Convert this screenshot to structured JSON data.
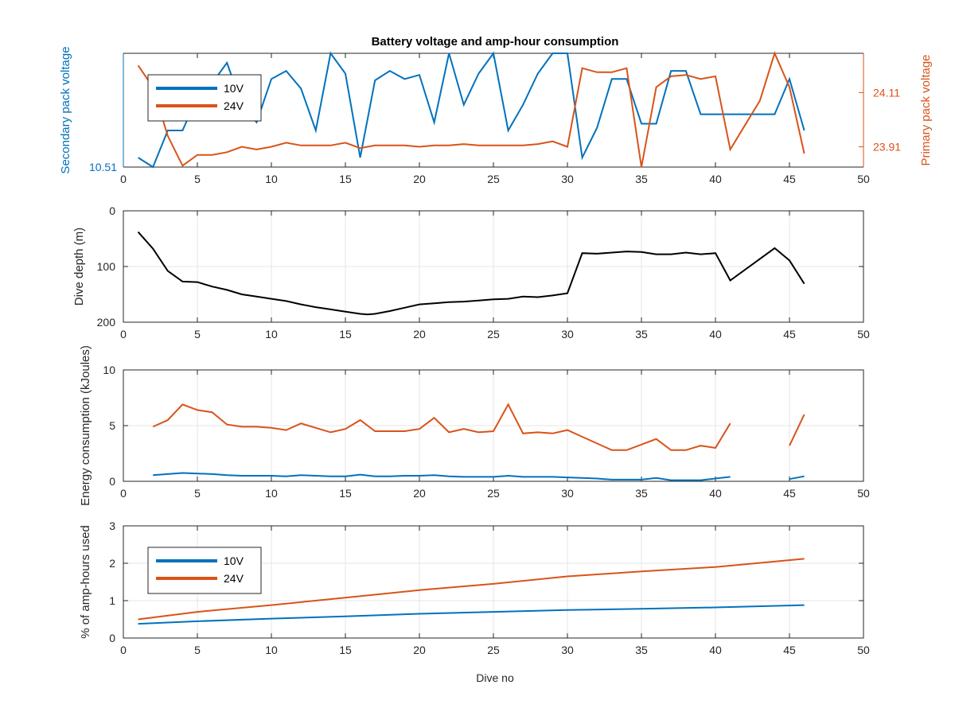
{
  "figure": {
    "title": "Battery voltage and amp-hour consumption",
    "xlabel": "Dive no"
  },
  "colors": {
    "blue": "#0072BD",
    "orange": "#D95319",
    "black": "#000000",
    "grid": "#e6e6e6",
    "axis": "#262626"
  },
  "chart_data": [
    {
      "type": "line",
      "id": "voltage",
      "title": "Battery voltage and amp-hour consumption",
      "xlabel": "",
      "xlim": [
        0,
        50
      ],
      "xticks": [
        0,
        5,
        10,
        15,
        20,
        25,
        30,
        35,
        40,
        45,
        50
      ],
      "ylabel_left": "Secondary pack voltage",
      "ylabel_right": "Primary pack voltage",
      "ylim_left": [
        10.51,
        10.552
      ],
      "yticks_left": [
        10.51
      ],
      "ytick_labels_left": [
        "10.51"
      ],
      "ylim_right": [
        23.835,
        24.255
      ],
      "yticks_right": [
        23.91,
        24.11
      ],
      "ytick_labels_right": [
        "23.91",
        "24.11"
      ],
      "grid": false,
      "legend": {
        "position": "top-left",
        "entries": [
          "10V",
          "24V"
        ]
      },
      "series": [
        {
          "name": "10V",
          "axis": "left",
          "color": "blue",
          "x": [
            1,
            2,
            3,
            4,
            5,
            6,
            7,
            8,
            9,
            10,
            11,
            12,
            13,
            14,
            15,
            16,
            17,
            18,
            19,
            20,
            21,
            22,
            23,
            24,
            25,
            26,
            27,
            28,
            29,
            30,
            31,
            32,
            33,
            34,
            35,
            36,
            37,
            38,
            39,
            40,
            41,
            42,
            43,
            44,
            45,
            46
          ],
          "y": [
            10.5135,
            10.51,
            10.5235,
            10.5235,
            10.536,
            10.541,
            10.5485,
            10.533,
            10.5265,
            10.5425,
            10.5455,
            10.539,
            10.5235,
            10.552,
            10.5445,
            10.5135,
            10.542,
            10.5455,
            10.5425,
            10.544,
            10.5265,
            10.552,
            10.533,
            10.5445,
            10.552,
            10.5235,
            10.533,
            10.5445,
            10.552,
            10.552,
            10.5135,
            10.5245,
            10.5425,
            10.5425,
            10.526,
            10.526,
            10.5455,
            10.5455,
            10.5295,
            10.5295,
            10.5295,
            10.5295,
            10.5295,
            10.5295,
            10.5425,
            10.5235
          ]
        },
        {
          "name": "24V",
          "axis": "right",
          "color": "orange",
          "x": [
            1,
            2,
            3,
            4,
            5,
            6,
            7,
            8,
            9,
            10,
            11,
            12,
            13,
            14,
            15,
            16,
            17,
            18,
            19,
            20,
            21,
            22,
            23,
            24,
            25,
            26,
            27,
            28,
            29,
            30,
            31,
            32,
            33,
            34,
            35,
            36,
            37,
            38,
            39,
            40,
            41,
            42,
            43,
            44,
            45,
            46
          ],
          "y": [
            24.21,
            24.13,
            23.95,
            23.84,
            23.88,
            23.88,
            23.89,
            23.91,
            23.9,
            23.91,
            23.925,
            23.915,
            23.915,
            23.915,
            23.925,
            23.905,
            23.915,
            23.915,
            23.915,
            23.91,
            23.915,
            23.915,
            23.92,
            23.915,
            23.915,
            23.915,
            23.915,
            23.92,
            23.93,
            23.91,
            24.2,
            24.185,
            24.185,
            24.2,
            23.835,
            24.13,
            24.17,
            24.175,
            24.16,
            24.17,
            23.9,
            23.99,
            24.08,
            24.255,
            24.13,
            23.885
          ]
        }
      ]
    },
    {
      "type": "line",
      "id": "depth",
      "xlabel": "",
      "ylabel": "Dive depth (m)",
      "xlim": [
        0,
        50
      ],
      "xticks": [
        0,
        5,
        10,
        15,
        20,
        25,
        30,
        35,
        40,
        45,
        50
      ],
      "ylim": [
        0,
        200
      ],
      "y_reversed": true,
      "yticks": [
        0,
        100,
        200
      ],
      "grid": true,
      "series": [
        {
          "color": "black",
          "x": [
            1,
            2,
            3,
            4,
            5,
            6,
            7,
            8,
            9,
            10,
            11,
            12,
            13,
            14,
            15,
            16,
            16.5,
            17,
            18,
            19,
            20,
            21,
            22,
            23,
            24,
            25,
            26,
            27,
            28,
            29,
            30,
            31,
            32,
            33,
            34,
            35,
            36,
            37,
            38,
            39,
            40,
            41,
            44,
            45,
            46
          ],
          "y": [
            38,
            68,
            108,
            127,
            128,
            136,
            142,
            150,
            154,
            158,
            162,
            168,
            173,
            177,
            181,
            185,
            186,
            185,
            180,
            174,
            168,
            166,
            164,
            163,
            161,
            159,
            158,
            154,
            155,
            152,
            148,
            76,
            77,
            75,
            73,
            74,
            78,
            78,
            75,
            78,
            76,
            125,
            67,
            89,
            131
          ]
        }
      ]
    },
    {
      "type": "line",
      "id": "energy",
      "xlabel": "",
      "ylabel": "Energy consumption (kJoules)",
      "xlim": [
        0,
        50
      ],
      "xticks": [
        0,
        5,
        10,
        15,
        20,
        25,
        30,
        35,
        40,
        45,
        50
      ],
      "ylim": [
        0,
        10
      ],
      "yticks": [
        0,
        5,
        10
      ],
      "grid": true,
      "series": [
        {
          "color": "orange",
          "segments": [
            {
              "x": [
                2,
                3,
                4,
                5,
                6,
                7,
                8,
                9,
                10,
                11,
                12,
                13,
                14,
                15,
                16,
                17,
                18,
                19,
                20,
                21,
                22,
                23,
                24,
                25,
                26,
                27,
                28,
                29,
                30,
                31,
                32,
                33,
                34,
                35,
                36,
                37,
                38,
                39,
                40,
                41
              ],
              "y": [
                4.9,
                5.5,
                6.9,
                6.4,
                6.2,
                5.1,
                4.9,
                4.9,
                4.8,
                4.6,
                5.2,
                4.8,
                4.4,
                4.7,
                5.5,
                4.5,
                4.5,
                4.5,
                4.7,
                5.7,
                4.4,
                4.7,
                4.4,
                4.5,
                6.9,
                4.3,
                4.4,
                4.3,
                4.6,
                4.0,
                3.4,
                2.8,
                2.8,
                3.3,
                3.8,
                2.8,
                2.8,
                3.2,
                3.0,
                5.2
              ]
            },
            {
              "x": [
                45,
                46
              ],
              "y": [
                3.2,
                6.0
              ]
            }
          ]
        },
        {
          "color": "blue",
          "segments": [
            {
              "x": [
                2,
                3,
                4,
                5,
                6,
                7,
                8,
                9,
                10,
                11,
                12,
                13,
                14,
                15,
                16,
                17,
                18,
                19,
                20,
                21,
                22,
                23,
                24,
                25,
                26,
                27,
                28,
                29,
                30,
                31,
                32,
                33,
                34,
                35,
                36,
                37,
                38,
                39,
                40,
                41
              ],
              "y": [
                0.55,
                0.65,
                0.75,
                0.7,
                0.65,
                0.55,
                0.5,
                0.5,
                0.5,
                0.45,
                0.55,
                0.5,
                0.45,
                0.45,
                0.6,
                0.45,
                0.45,
                0.5,
                0.5,
                0.55,
                0.45,
                0.4,
                0.4,
                0.4,
                0.5,
                0.4,
                0.4,
                0.4,
                0.35,
                0.3,
                0.25,
                0.15,
                0.15,
                0.15,
                0.3,
                0.1,
                0.1,
                0.1,
                0.25,
                0.4
              ]
            },
            {
              "x": [
                45,
                46
              ],
              "y": [
                0.2,
                0.45
              ]
            }
          ]
        }
      ]
    },
    {
      "type": "line",
      "id": "amphours",
      "xlabel": "Dive no",
      "ylabel": "% of amp-hours used",
      "xlim": [
        0,
        50
      ],
      "xticks": [
        0,
        5,
        10,
        15,
        20,
        25,
        30,
        35,
        40,
        45,
        50
      ],
      "ylim": [
        0,
        3
      ],
      "yticks": [
        0,
        1,
        2,
        3
      ],
      "grid": true,
      "legend": {
        "position": "top-left",
        "entries": [
          "10V",
          "24V"
        ]
      },
      "series": [
        {
          "name": "10V",
          "color": "blue",
          "x": [
            1,
            5,
            10,
            15,
            20,
            25,
            30,
            35,
            40,
            46
          ],
          "y": [
            0.38,
            0.45,
            0.52,
            0.58,
            0.65,
            0.7,
            0.75,
            0.78,
            0.82,
            0.88
          ]
        },
        {
          "name": "24V",
          "color": "orange",
          "x": [
            1,
            5,
            10,
            15,
            20,
            25,
            30,
            35,
            40,
            46
          ],
          "y": [
            0.5,
            0.7,
            0.88,
            1.08,
            1.28,
            1.45,
            1.65,
            1.78,
            1.9,
            2.12
          ]
        }
      ]
    }
  ]
}
